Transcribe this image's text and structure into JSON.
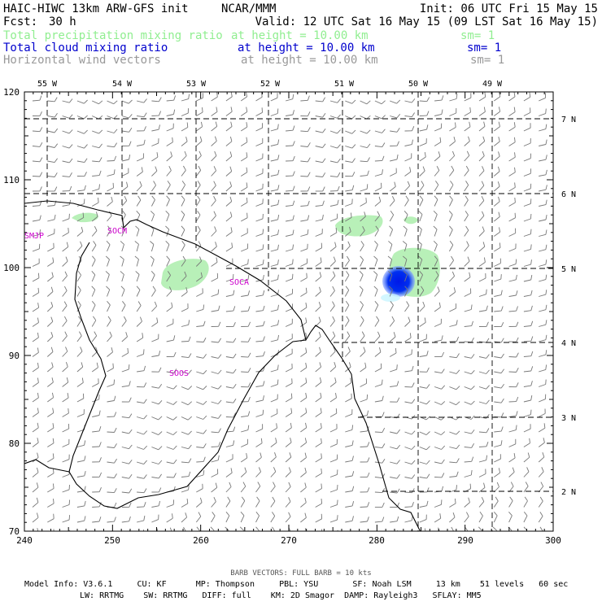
{
  "header": {
    "title_left": "HAIC-HIWC 13km ARW-GFS init",
    "title_center": "NCAR/MMM",
    "init_time": "Init: 06 UTC Fri 15 May 15",
    "fcst_label": "Fcst:",
    "fcst_value": "30 h",
    "valid_time": "Valid: 12 UTC Sat 16 May 15 (09 LST Sat 16 May 15)",
    "fields": [
      {
        "name": "Total precipitation mixing ratio",
        "level": "at height = 10.00 km",
        "smooth": "sm= 1",
        "color": "#90ee90"
      },
      {
        "name": "Total cloud mixing ratio",
        "level": "at height = 10.00 km",
        "smooth": "sm= 1",
        "color": "#0000cd"
      },
      {
        "name": "Horizontal wind vectors",
        "level": "at height = 10.00 km",
        "smooth": "sm= 1",
        "color": "#999999"
      }
    ]
  },
  "map": {
    "top_lon_labels": [
      "55 W",
      "54 W",
      "53 W",
      "52 W",
      "51 W",
      "50 W",
      "49 W"
    ],
    "right_lat_labels": [
      "7 N",
      "6 N",
      "5 N",
      "4 N",
      "3 N",
      "2 N"
    ],
    "left_y_ticks": [
      "120",
      "110",
      "100",
      "90",
      "80",
      "70"
    ],
    "bottom_x_ticks": [
      "240",
      "250",
      "260",
      "270",
      "280",
      "290",
      "300"
    ],
    "stations": [
      "SMJP",
      "SOCM",
      "SOCA",
      "SOOS"
    ],
    "colors": {
      "coast": "#000000",
      "grid": "#000000",
      "barb": "#777777",
      "station": "#cc00cc",
      "precip": "#b8f0b8",
      "cloud": "#0022ee"
    }
  },
  "footer": {
    "barb_note": "BARB VECTORS:  FULL BARB = 10 kts",
    "model_line1": "Model Info: V3.6.1     CU: KF      MP: Thompson     PBL: YSU       SF: Noah LSM     13 km    51 levels   60 sec",
    "model_line2": "LW: RRTMG    SW: RRTMG   DIFF: full    KM: 2D Smagor  DAMP: Rayleigh3   SFLAY: MM5"
  }
}
